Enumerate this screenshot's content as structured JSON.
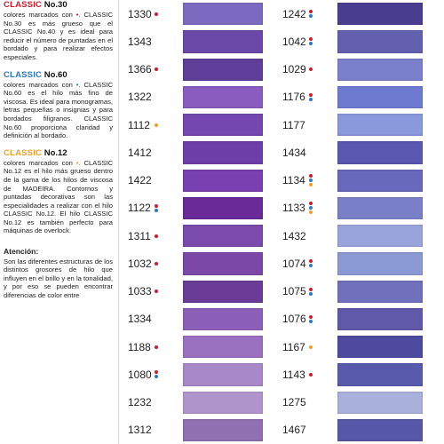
{
  "colors": {
    "red": "#d11a2a",
    "blue": "#2a78c8",
    "orange": "#f0a020"
  },
  "sidebar": {
    "classic30": {
      "brand": "CLASSIC",
      "title_rest": " No.30",
      "brand_color": "#d11a2a",
      "text_a": "colores marcados con ",
      "dot": "•",
      "dot_color": "#d11a2a",
      "text_b": ". CLASSIC No.30 es más grueso que el CLASSIC No.40 y es ideal para reducir el número de puntadas en el bordado y para realizar efectos especiales."
    },
    "classic60": {
      "brand": "CLASSIC",
      "title_rest": " No.60",
      "brand_color": "#2a78c8",
      "text_a": "colores marcados con ",
      "dot": "•",
      "dot_color": "#2a78c8",
      "text_b": ". CLASSIC No.60 es el hilo más fino de viscosa. Es ideal para monogramas, letras pequeñas o insignias y para bordados filigranos. CLASSIC No.60 proporciona claridad y definición al bordado."
    },
    "classic12": {
      "brand": "CLASSIC",
      "title_rest": " No.12",
      "brand_color": "#f0a020",
      "text_a": "colores marcados con ",
      "dot": "•",
      "dot_color": "#f0a020",
      "text_b": ". CLASSIC No.12 es el hilo más grueso dentro de la gama de los hilos de viscosa de MADEIRA. Contornos y puntadas decorativas son las especialidades a realizar con el hilo CLASSIC No.12. El hilo CLASSIC No.12 es también perfecto para máquinas de overlock."
    },
    "attention": {
      "title": "Atención:",
      "text": "Son las diferentes estructuras de los distintos grosores de hilo que influyen en el brillo y en la tonalidad, y por eso se pueden encontrar diferencias de color entre"
    }
  },
  "column_a": [
    {
      "code": "1330",
      "dots": [
        "red"
      ],
      "swatch": "#7b6ac0"
    },
    {
      "code": "1343",
      "dots": [],
      "swatch": "#6a48a8"
    },
    {
      "code": "1366",
      "dots": [
        "red"
      ],
      "swatch": "#5e3e98"
    },
    {
      "code": "1322",
      "dots": [],
      "swatch": "#8a5cc0"
    },
    {
      "code": "1112",
      "dots": [
        "orange"
      ],
      "swatch": "#7448b0"
    },
    {
      "code": "1412",
      "dots": [],
      "swatch": "#6e3ea8"
    },
    {
      "code": "1422",
      "dots": [],
      "swatch": "#7840b0"
    },
    {
      "code": "1122",
      "dots": [
        "red",
        "blue"
      ],
      "swatch": "#6a2a98"
    },
    {
      "code": "1311",
      "dots": [
        "red"
      ],
      "swatch": "#7a4aac"
    },
    {
      "code": "1032",
      "dots": [
        "red"
      ],
      "swatch": "#7c48a8"
    },
    {
      "code": "1033",
      "dots": [
        "red"
      ],
      "swatch": "#6a3c98"
    },
    {
      "code": "1334",
      "dots": [],
      "swatch": "#8c60b8"
    },
    {
      "code": "1188",
      "dots": [
        "red"
      ],
      "swatch": "#9a70c0"
    },
    {
      "code": "1080",
      "dots": [
        "red",
        "blue"
      ],
      "swatch": "#a888c8"
    },
    {
      "code": "1232",
      "dots": [],
      "swatch": "#b094cc"
    },
    {
      "code": "1312",
      "dots": [],
      "swatch": "#9070b0"
    }
  ],
  "column_b": [
    {
      "code": "1242",
      "dots": [
        "red",
        "blue"
      ],
      "swatch": "#4a3e90"
    },
    {
      "code": "1042",
      "dots": [
        "red",
        "blue"
      ],
      "swatch": "#6460b0"
    },
    {
      "code": "1029",
      "dots": [
        "red"
      ],
      "swatch": "#7a80cc"
    },
    {
      "code": "1176",
      "dots": [
        "red",
        "blue"
      ],
      "swatch": "#6e7ad0"
    },
    {
      "code": "1177",
      "dots": [],
      "swatch": "#8a98dc"
    },
    {
      "code": "1434",
      "dots": [],
      "swatch": "#5a58b0"
    },
    {
      "code": "1134",
      "dots": [
        "red",
        "blue",
        "orange"
      ],
      "swatch": "#6868bc"
    },
    {
      "code": "1133",
      "dots": [
        "red",
        "blue",
        "orange"
      ],
      "swatch": "#7a80c8"
    },
    {
      "code": "1432",
      "dots": [],
      "swatch": "#9aa4dc"
    },
    {
      "code": "1074",
      "dots": [
        "red",
        "blue"
      ],
      "swatch": "#8a98d4"
    },
    {
      "code": "1075",
      "dots": [
        "red",
        "blue"
      ],
      "swatch": "#7070bc"
    },
    {
      "code": "1076",
      "dots": [
        "red",
        "blue"
      ],
      "swatch": "#6058a8"
    },
    {
      "code": "1167",
      "dots": [
        "orange"
      ],
      "swatch": "#4e4aa0"
    },
    {
      "code": "1143",
      "dots": [
        "red"
      ],
      "swatch": "#585aac"
    },
    {
      "code": "1275",
      "dots": [],
      "swatch": "#aab0dc"
    },
    {
      "code": "1467",
      "dots": [],
      "swatch": "#5858a8"
    }
  ]
}
